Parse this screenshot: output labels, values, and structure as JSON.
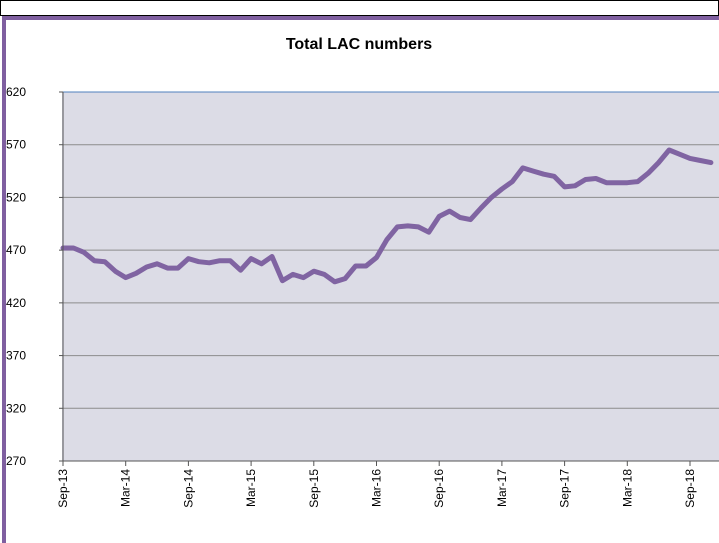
{
  "chart_data": {
    "type": "line",
    "title": "Total LAC numbers",
    "categories": [
      "Sep-13",
      null,
      null,
      null,
      null,
      null,
      "Mar-14",
      null,
      null,
      null,
      null,
      null,
      "Sep-14",
      null,
      null,
      null,
      null,
      null,
      "Mar-15",
      null,
      null,
      null,
      null,
      null,
      "Sep-15",
      null,
      null,
      null,
      null,
      null,
      "Mar-16",
      null,
      null,
      null,
      null,
      null,
      "Sep-16",
      null,
      null,
      null,
      null,
      null,
      "Mar-17",
      null,
      null,
      null,
      null,
      null,
      "Sep-17",
      null,
      null,
      null,
      null,
      null,
      "Mar-18",
      null,
      null,
      null,
      null,
      null,
      "Sep-18",
      null,
      null
    ],
    "values": [
      472,
      472,
      468,
      460,
      459,
      450,
      444,
      448,
      454,
      457,
      453,
      453,
      462,
      459,
      458,
      460,
      460,
      451,
      462,
      457,
      464,
      441,
      447,
      444,
      450,
      447,
      440,
      443,
      455,
      455,
      463,
      480,
      492,
      493,
      492,
      487,
      502,
      507,
      501,
      499,
      510,
      520,
      528,
      535,
      548,
      545,
      542,
      540,
      530,
      531,
      537,
      538,
      534,
      534,
      534,
      535,
      543,
      553,
      565,
      561,
      557,
      555,
      553
    ],
    "color": "#8064a2",
    "ylim": [
      270,
      620
    ],
    "yticks": [
      270,
      320,
      370,
      420,
      470,
      520,
      570,
      620
    ],
    "grid": true
  }
}
